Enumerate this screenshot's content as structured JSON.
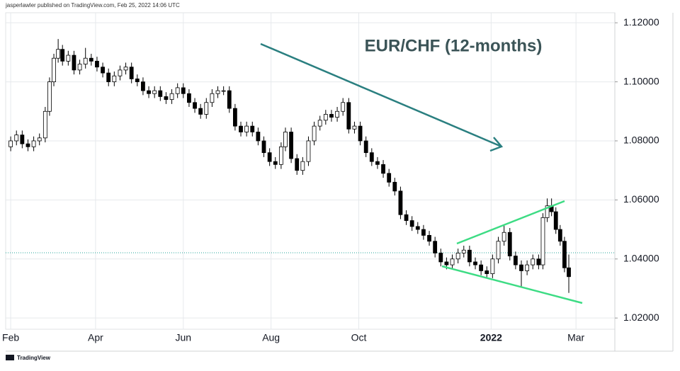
{
  "header": "jasperlawler published on TradingView.com, Feb 25, 2022 14:06 UTC",
  "footer": "TradingView",
  "chart_data": {
    "type": "candlestick",
    "title": "EUR/CHF (12-months)",
    "up_color": "#ffffff",
    "down_color": "#000000",
    "wick_color": "#000000",
    "grid": true,
    "xlim": [
      -3.5,
      420
    ],
    "xticks": [
      {
        "value": 0,
        "label": "Feb"
      },
      {
        "value": 59,
        "label": "Apr"
      },
      {
        "value": 120,
        "label": "Jun"
      },
      {
        "value": 181,
        "label": "Aug"
      },
      {
        "value": 242,
        "label": "Oct"
      },
      {
        "value": 334,
        "label": "2022"
      },
      {
        "value": 393,
        "label": "Mar"
      }
    ],
    "ylim": [
      1.0162,
      1.1234
    ],
    "yticks": [
      {
        "value": 1.02,
        "label": "1.02000"
      },
      {
        "value": 1.04,
        "label": "1.04000"
      },
      {
        "value": 1.06,
        "label": "1.06000"
      },
      {
        "value": 1.08,
        "label": "1.08000"
      },
      {
        "value": 1.1,
        "label": "1.10000"
      },
      {
        "value": 1.12,
        "label": "1.12000"
      }
    ],
    "x": [
      0,
      4,
      8,
      12,
      16,
      20,
      24,
      27,
      30,
      33,
      36,
      40,
      44,
      48,
      52,
      56,
      60,
      64,
      68,
      72,
      76,
      80,
      84,
      88,
      92,
      96,
      100,
      104,
      108,
      112,
      116,
      120,
      124,
      128,
      132,
      136,
      140,
      144,
      148,
      152,
      156,
      160,
      164,
      168,
      172,
      176,
      180,
      184,
      188,
      191,
      195,
      199,
      203,
      207,
      211,
      215,
      219,
      223,
      227,
      231,
      235,
      239,
      243,
      247,
      251,
      255,
      259,
      263,
      267,
      271,
      275,
      279,
      283,
      287,
      291,
      295,
      299,
      303,
      307,
      311,
      315,
      319,
      323,
      327,
      331,
      335,
      339,
      343,
      347,
      351,
      355,
      359,
      363,
      367,
      370,
      373,
      376,
      379,
      382,
      385,
      388
    ],
    "open": [
      1.078,
      1.08,
      1.082,
      1.079,
      1.078,
      1.08,
      1.081,
      1.09,
      1.1,
      1.108,
      1.111,
      1.107,
      1.109,
      1.104,
      1.106,
      1.108,
      1.107,
      1.105,
      1.103,
      1.1,
      1.102,
      1.104,
      1.105,
      1.101,
      1.1,
      1.097,
      1.096,
      1.097,
      1.095,
      1.094,
      1.096,
      1.098,
      1.096,
      1.093,
      1.091,
      1.089,
      1.093,
      1.096,
      1.097,
      1.097,
      1.091,
      1.085,
      1.083,
      1.085,
      1.083,
      1.08,
      1.076,
      1.073,
      1.072,
      1.078,
      1.083,
      1.074,
      1.07,
      1.073,
      1.08,
      1.085,
      1.087,
      1.089,
      1.088,
      1.09,
      1.093,
      1.084,
      1.085,
      1.08,
      1.076,
      1.073,
      1.072,
      1.069,
      1.066,
      1.063,
      1.055,
      1.053,
      1.051,
      1.05,
      1.048,
      1.046,
      1.042,
      1.039,
      1.038,
      1.04,
      1.042,
      1.043,
      1.039,
      1.038,
      1.036,
      1.035,
      1.04,
      1.046,
      1.049,
      1.041,
      1.038,
      1.036,
      1.038,
      1.04,
      1.038,
      1.054,
      1.058,
      1.056,
      1.05,
      1.046,
      1.037
    ],
    "high": [
      1.0815,
      1.0835,
      1.0835,
      1.0805,
      1.0815,
      1.0825,
      1.0915,
      1.1015,
      1.1095,
      1.1145,
      1.1125,
      1.1105,
      1.1105,
      1.1075,
      1.1115,
      1.1095,
      1.1085,
      1.1065,
      1.1045,
      1.1035,
      1.1055,
      1.1065,
      1.1065,
      1.1025,
      1.1015,
      1.0985,
      1.0985,
      1.0985,
      1.0965,
      1.0975,
      1.0995,
      1.0995,
      1.0975,
      1.0945,
      1.0925,
      1.0945,
      1.0975,
      1.0985,
      1.0985,
      1.0985,
      1.0925,
      1.0865,
      1.0865,
      1.0865,
      1.0845,
      1.0815,
      1.0775,
      1.0745,
      1.0795,
      1.0845,
      1.0845,
      1.0755,
      1.0745,
      1.0815,
      1.0865,
      1.0885,
      1.0905,
      1.0905,
      1.0915,
      1.0945,
      1.0945,
      1.0865,
      1.0865,
      1.0815,
      1.0775,
      1.0745,
      1.0735,
      1.0705,
      1.0675,
      1.0645,
      1.0565,
      1.0545,
      1.0525,
      1.0515,
      1.0495,
      1.0475,
      1.0435,
      1.0405,
      1.0415,
      1.0435,
      1.0445,
      1.0445,
      1.0405,
      1.0395,
      1.0375,
      1.0415,
      1.0475,
      1.0515,
      1.0505,
      1.0425,
      1.0395,
      1.0395,
      1.0415,
      1.0415,
      1.0555,
      1.0605,
      1.0605,
      1.0575,
      1.0515,
      1.0475,
      1.0415
    ],
    "low": [
      1.0765,
      1.0785,
      1.0775,
      1.0765,
      1.0765,
      1.0785,
      1.0795,
      1.0885,
      1.0985,
      1.1065,
      1.1055,
      1.1055,
      1.1025,
      1.1025,
      1.1045,
      1.1055,
      1.1035,
      1.1015,
      1.0985,
      1.0985,
      1.1005,
      1.1025,
      1.0995,
      1.0985,
      1.0955,
      1.0945,
      1.0945,
      1.0935,
      1.0925,
      1.0925,
      1.0945,
      1.0945,
      1.0915,
      1.0895,
      1.0875,
      1.0875,
      1.0915,
      1.0945,
      1.0955,
      1.0895,
      1.0835,
      1.0815,
      1.0815,
      1.0815,
      1.0785,
      1.0745,
      1.0715,
      1.0705,
      1.0705,
      1.0765,
      1.0725,
      1.0685,
      1.0685,
      1.0715,
      1.0785,
      1.0835,
      1.0855,
      1.0865,
      1.0865,
      1.0885,
      1.0825,
      1.0825,
      1.0785,
      1.0745,
      1.0715,
      1.0705,
      1.0675,
      1.0645,
      1.0615,
      1.0535,
      1.0515,
      1.0495,
      1.0485,
      1.0465,
      1.0445,
      1.0405,
      1.0375,
      1.0365,
      1.0365,
      1.0385,
      1.0405,
      1.0375,
      1.0365,
      1.0345,
      1.0335,
      1.0335,
      1.0385,
      1.0445,
      1.0395,
      1.0365,
      1.0305,
      1.0345,
      1.0365,
      1.0365,
      1.0365,
      1.0525,
      1.0545,
      1.0485,
      1.0445,
      1.0355,
      1.0285
    ],
    "close": [
      1.08,
      1.082,
      1.079,
      1.078,
      1.08,
      1.081,
      1.09,
      1.1,
      1.108,
      1.111,
      1.107,
      1.109,
      1.104,
      1.106,
      1.108,
      1.107,
      1.105,
      1.103,
      1.1,
      1.102,
      1.104,
      1.105,
      1.101,
      1.1,
      1.097,
      1.096,
      1.097,
      1.095,
      1.094,
      1.096,
      1.098,
      1.096,
      1.093,
      1.091,
      1.089,
      1.093,
      1.096,
      1.097,
      1.097,
      1.091,
      1.085,
      1.083,
      1.085,
      1.083,
      1.08,
      1.076,
      1.073,
      1.072,
      1.078,
      1.083,
      1.074,
      1.07,
      1.073,
      1.08,
      1.085,
      1.087,
      1.089,
      1.088,
      1.09,
      1.093,
      1.084,
      1.085,
      1.08,
      1.076,
      1.073,
      1.072,
      1.069,
      1.066,
      1.063,
      1.055,
      1.053,
      1.051,
      1.05,
      1.048,
      1.046,
      1.042,
      1.039,
      1.038,
      1.04,
      1.042,
      1.043,
      1.039,
      1.038,
      1.036,
      1.035,
      1.04,
      1.046,
      1.049,
      1.041,
      1.038,
      1.036,
      1.038,
      1.04,
      1.038,
      1.054,
      1.058,
      1.056,
      1.05,
      1.046,
      1.037,
      1.034
    ]
  }
}
